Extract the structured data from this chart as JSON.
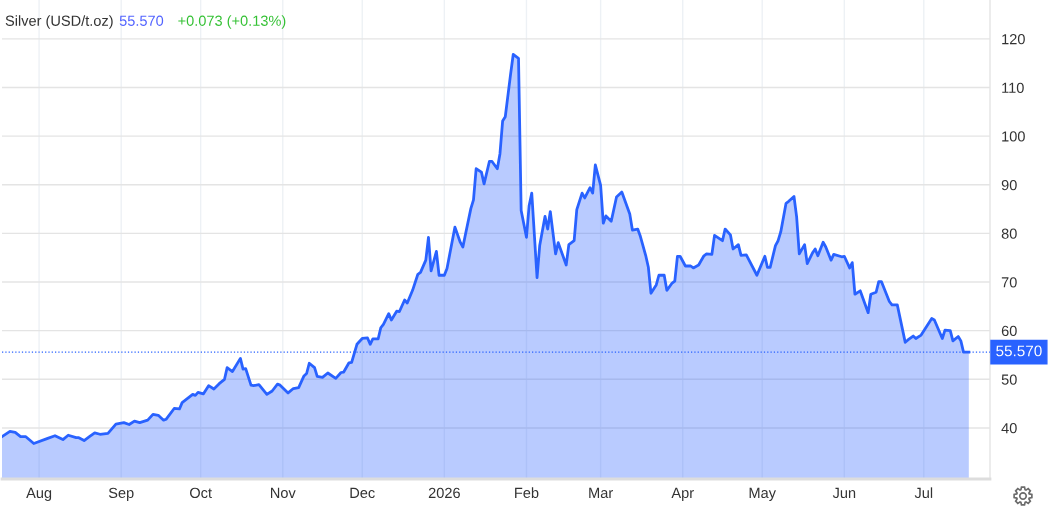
{
  "chart_data": {
    "type": "area",
    "title": "Silver (USD/t.oz)",
    "annotations": [
      "55.570",
      "+0.073 (+0.13%)"
    ],
    "x": [
      "2025-07-18",
      "2025-07-21",
      "2025-07-23",
      "2025-07-25",
      "2025-07-27",
      "2025-07-30",
      "2025-08-04",
      "2025-08-07",
      "2025-08-10",
      "2025-08-12",
      "2025-08-15",
      "2025-08-16",
      "2025-08-18",
      "2025-08-20",
      "2025-08-22",
      "2025-08-24",
      "2025-08-27",
      "2025-08-30",
      "2025-09-02",
      "2025-09-04",
      "2025-09-06",
      "2025-09-08",
      "2025-09-11",
      "2025-09-13",
      "2025-09-15",
      "2025-09-17",
      "2025-09-18",
      "2025-09-21",
      "2025-09-23",
      "2025-09-24",
      "2025-09-28",
      "2025-09-29",
      "2025-09-30",
      "2025-10-02",
      "2025-10-04",
      "2025-10-06",
      "2025-10-08",
      "2025-10-10",
      "2025-10-11",
      "2025-10-13",
      "2025-10-16",
      "2025-10-17",
      "2025-10-18",
      "2025-10-20",
      "2025-10-21",
      "2025-10-23",
      "2025-10-26",
      "2025-10-28",
      "2025-10-30",
      "2025-10-31",
      "2025-11-03",
      "2025-11-05",
      "2025-11-07",
      "2025-11-09",
      "2025-11-10",
      "2025-11-11",
      "2025-11-13",
      "2025-11-14",
      "2025-11-16",
      "2025-11-18",
      "2025-11-21",
      "2025-11-23",
      "2025-11-24",
      "2025-11-26",
      "2025-11-27",
      "2025-11-29",
      "2025-12-01",
      "2025-12-03",
      "2025-12-04",
      "2025-12-05",
      "2025-12-07",
      "2025-12-08",
      "2025-12-09",
      "2025-12-11",
      "2025-12-12",
      "2025-12-14",
      "2025-12-15",
      "2025-12-17",
      "2025-12-18",
      "2025-12-20",
      "2025-12-22",
      "2025-12-23",
      "2025-12-25",
      "2025-12-26",
      "2025-12-27",
      "2025-12-29",
      "2025-12-30",
      "2026-01-01",
      "2026-01-02",
      "2026-01-05",
      "2026-01-07",
      "2026-01-08",
      "2026-01-09",
      "2026-01-11",
      "2026-01-12",
      "2026-01-13",
      "2026-01-15",
      "2026-01-16",
      "2026-01-18",
      "2026-01-19",
      "2026-01-21",
      "2026-01-22",
      "2026-01-23",
      "2026-01-24",
      "2026-01-26",
      "2026-01-27",
      "2026-01-29",
      "2026-01-30",
      "2026-02-01",
      "2026-02-02",
      "2026-02-03",
      "2026-02-05",
      "2026-02-06",
      "2026-02-08",
      "2026-02-09",
      "2026-02-10",
      "2026-02-12",
      "2026-02-13",
      "2026-02-16",
      "2026-02-17",
      "2026-02-19",
      "2026-02-20",
      "2026-02-22",
      "2026-02-23",
      "2026-02-25",
      "2026-02-26",
      "2026-02-27",
      "2026-03-01",
      "2026-03-02",
      "2026-03-03",
      "2026-03-05",
      "2026-03-07",
      "2026-03-09",
      "2026-03-12",
      "2026-03-13",
      "2026-03-15",
      "2026-03-16",
      "2026-03-18",
      "2026-03-19",
      "2026-03-20",
      "2026-03-22",
      "2026-03-23",
      "2026-03-25",
      "2026-03-26",
      "2026-03-28",
      "2026-03-29",
      "2026-03-30",
      "2026-03-31",
      "2026-04-02",
      "2026-04-04",
      "2026-04-05",
      "2026-04-07",
      "2026-04-09",
      "2026-04-10",
      "2026-04-12",
      "2026-04-13",
      "2026-04-16",
      "2026-04-17",
      "2026-04-19",
      "2026-04-20",
      "2026-04-22",
      "2026-04-23",
      "2026-04-25",
      "2026-04-29",
      "2026-05-02",
      "2026-05-03",
      "2026-05-04",
      "2026-05-06",
      "2026-05-07",
      "2026-05-08",
      "2026-05-10",
      "2026-05-11",
      "2026-05-13",
      "2026-05-14",
      "2026-05-15",
      "2026-05-17",
      "2026-05-18",
      "2026-05-20",
      "2026-05-21",
      "2026-05-22",
      "2026-05-24",
      "2026-05-25",
      "2026-05-27",
      "2026-05-28",
      "2026-05-31",
      "2026-06-01",
      "2026-06-03",
      "2026-06-04",
      "2026-06-05",
      "2026-06-07",
      "2026-06-10",
      "2026-06-11",
      "2026-06-13",
      "2026-06-14",
      "2026-06-15",
      "2026-06-18",
      "2026-06-19",
      "2026-06-21",
      "2026-06-24",
      "2026-06-25",
      "2026-06-27",
      "2026-06-28",
      "2026-06-30",
      "2026-07-04",
      "2026-07-05",
      "2026-07-08",
      "2026-07-09",
      "2026-07-11",
      "2026-07-12",
      "2026-07-14",
      "2026-07-15",
      "2026-07-16",
      "2026-07-18"
    ],
    "series": [
      {
        "color": "#2962ff",
        "values": [
          38.2,
          39.3,
          39.1,
          38.2,
          38.2,
          36.8,
          37.8,
          38.4,
          37.6,
          38.5,
          38.0,
          38.0,
          37.4,
          38.2,
          39.0,
          38.7,
          38.9,
          40.8,
          41.1,
          40.7,
          41.4,
          41.1,
          41.6,
          42.8,
          42.6,
          41.6,
          41.8,
          44.0,
          43.9,
          45.2,
          46.9,
          46.7,
          47.3,
          47.0,
          48.7,
          48.0,
          49.1,
          50.0,
          52.4,
          51.6,
          54.3,
          52.1,
          52.2,
          48.8,
          48.7,
          48.9,
          46.9,
          47.6,
          49.0,
          48.8,
          47.2,
          48.1,
          48.3,
          50.7,
          51.2,
          53.3,
          52.4,
          50.6,
          50.4,
          51.3,
          50.2,
          51.4,
          51.5,
          53.4,
          53.5,
          57.2,
          58.4,
          58.5,
          57.2,
          58.3,
          58.3,
          60.6,
          61.3,
          63.5,
          62.2,
          64.0,
          63.9,
          66.3,
          65.7,
          68.3,
          71.6,
          72.0,
          74.5,
          79.2,
          72.3,
          76.3,
          71.4,
          71.4,
          72.8,
          81.3,
          78.2,
          77.2,
          79.9,
          85.1,
          86.9,
          93.3,
          92.6,
          90.2,
          94.8,
          94.8,
          93.3,
          96.4,
          103.1,
          104.0,
          112.7,
          116.8,
          116.0,
          84.7,
          79.2,
          85.7,
          88.3,
          70.9,
          77.5,
          83.5,
          80.9,
          84.5,
          75.8,
          78.1,
          73.5,
          77.7,
          78.5,
          84.9,
          88.3,
          87.3,
          89.4,
          88.3,
          94.1,
          89.9,
          82.1,
          83.6,
          82.5,
          87.5,
          88.5,
          84.0,
          80.7,
          80.9,
          79.4,
          75.5,
          73.1,
          67.7,
          69.4,
          71.4,
          71.4,
          68.3,
          69.8,
          70.2,
          75.3,
          75.3,
          73.3,
          73.3,
          72.9,
          73.5,
          75.4,
          75.8,
          75.7,
          79.6,
          78.5,
          80.9,
          79.7,
          76.8,
          77.7,
          75.5,
          75.6,
          71.4,
          75.3,
          73.0,
          73.0,
          77.5,
          78.5,
          80.3,
          86.2,
          86.6,
          87.6,
          83.4,
          75.8,
          77.7,
          73.8,
          76.0,
          76.8,
          75.4,
          78.2,
          77.2,
          74.5,
          75.7,
          75.2,
          75.3,
          72.9,
          74.0,
          67.5,
          68.2,
          63.7,
          67.5,
          67.9,
          70.1,
          70.1,
          66.0,
          65.3,
          65.3,
          57.6,
          58.1,
          58.9,
          58.4,
          59.1,
          62.5,
          62.2,
          58.4,
          60.1,
          60.0,
          57.9,
          58.8,
          57.9,
          55.6,
          55.6
        ]
      }
    ],
    "xlim": [
      "2025-07-18",
      "2026-07-26"
    ],
    "xticks": [
      {
        "value": "2025-08-01",
        "label": "Aug"
      },
      {
        "value": "2025-09-01",
        "label": "Sep"
      },
      {
        "value": "2025-10-01",
        "label": "Oct"
      },
      {
        "value": "2025-11-01",
        "label": "Nov"
      },
      {
        "value": "2025-12-01",
        "label": "Dec"
      },
      {
        "value": "2026-01-01",
        "label": "2026"
      },
      {
        "value": "2026-02-01",
        "label": "Feb"
      },
      {
        "value": "2026-03-01",
        "label": "Mar"
      },
      {
        "value": "2026-04-01",
        "label": "Apr"
      },
      {
        "value": "2026-05-01",
        "label": "May"
      },
      {
        "value": "2026-06-01",
        "label": "Jun"
      },
      {
        "value": "2026-07-01",
        "label": "Jul"
      }
    ],
    "ylim": [
      29.5,
      128
    ],
    "yticks": [
      40,
      50,
      60,
      70,
      80,
      90,
      100,
      110,
      120
    ],
    "grid": true,
    "ref_lines": [
      {
        "axis": "y",
        "value": 55.57,
        "label": "55.570",
        "color": "#2962ff",
        "line_style": "dotted"
      }
    ]
  }
}
